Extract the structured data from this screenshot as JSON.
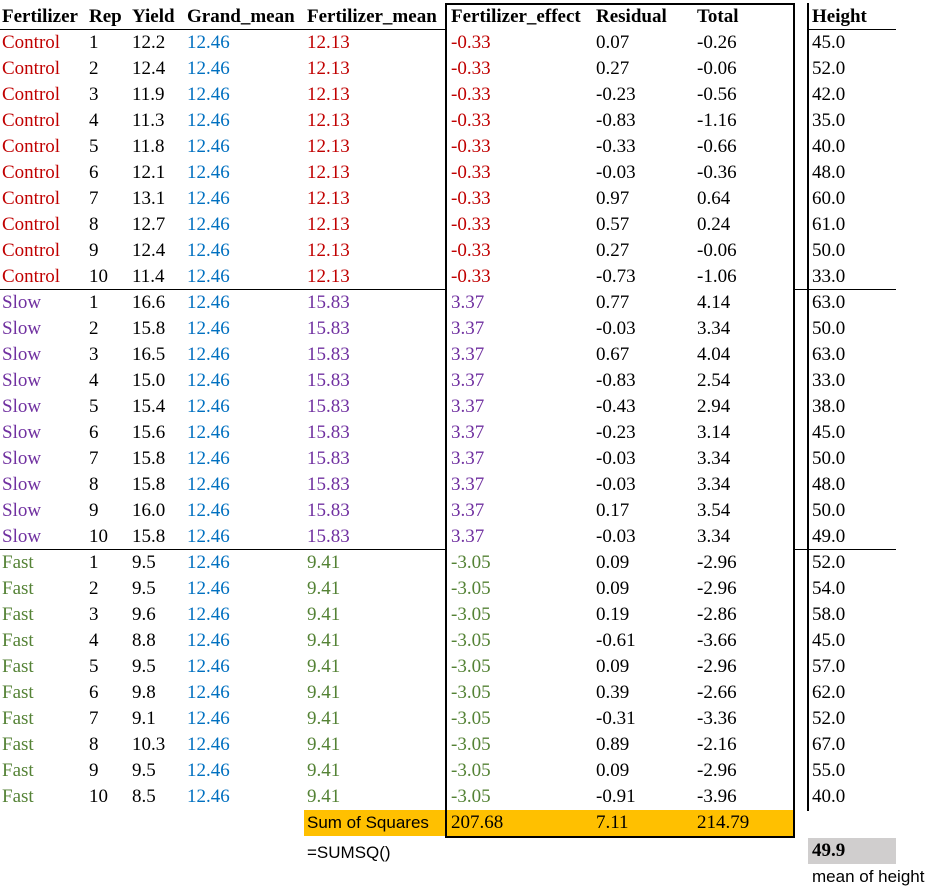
{
  "headers": {
    "fertilizer": "Fertilizer",
    "rep": "Rep",
    "yield": "Yield",
    "grand_mean": "Grand_mean",
    "fertilizer_mean": "Fertilizer_mean",
    "fertilizer_effect": "Fertilizer_effect",
    "residual": "Residual",
    "total": "Total",
    "height": "Height"
  },
  "colors": {
    "Control": "#c00000",
    "Slow": "#7030a0",
    "Fast": "#548235",
    "grand_mean": "#0070c0",
    "orange_fill": "#ffc000",
    "grey_fill": "#d0cece"
  },
  "rows": [
    {
      "fertilizer": "Control",
      "rep": "1",
      "yield": "12.2",
      "grand_mean": "12.46",
      "fertilizer_mean": "12.13",
      "fertilizer_effect": "-0.33",
      "residual": "0.07",
      "total": "-0.26",
      "height": "45.0"
    },
    {
      "fertilizer": "Control",
      "rep": "2",
      "yield": "12.4",
      "grand_mean": "12.46",
      "fertilizer_mean": "12.13",
      "fertilizer_effect": "-0.33",
      "residual": "0.27",
      "total": "-0.06",
      "height": "52.0"
    },
    {
      "fertilizer": "Control",
      "rep": "3",
      "yield": "11.9",
      "grand_mean": "12.46",
      "fertilizer_mean": "12.13",
      "fertilizer_effect": "-0.33",
      "residual": "-0.23",
      "total": "-0.56",
      "height": "42.0"
    },
    {
      "fertilizer": "Control",
      "rep": "4",
      "yield": "11.3",
      "grand_mean": "12.46",
      "fertilizer_mean": "12.13",
      "fertilizer_effect": "-0.33",
      "residual": "-0.83",
      "total": "-1.16",
      "height": "35.0"
    },
    {
      "fertilizer": "Control",
      "rep": "5",
      "yield": "11.8",
      "grand_mean": "12.46",
      "fertilizer_mean": "12.13",
      "fertilizer_effect": "-0.33",
      "residual": "-0.33",
      "total": "-0.66",
      "height": "40.0"
    },
    {
      "fertilizer": "Control",
      "rep": "6",
      "yield": "12.1",
      "grand_mean": "12.46",
      "fertilizer_mean": "12.13",
      "fertilizer_effect": "-0.33",
      "residual": "-0.03",
      "total": "-0.36",
      "height": "48.0"
    },
    {
      "fertilizer": "Control",
      "rep": "7",
      "yield": "13.1",
      "grand_mean": "12.46",
      "fertilizer_mean": "12.13",
      "fertilizer_effect": "-0.33",
      "residual": "0.97",
      "total": "0.64",
      "height": "60.0"
    },
    {
      "fertilizer": "Control",
      "rep": "8",
      "yield": "12.7",
      "grand_mean": "12.46",
      "fertilizer_mean": "12.13",
      "fertilizer_effect": "-0.33",
      "residual": "0.57",
      "total": "0.24",
      "height": "61.0"
    },
    {
      "fertilizer": "Control",
      "rep": "9",
      "yield": "12.4",
      "grand_mean": "12.46",
      "fertilizer_mean": "12.13",
      "fertilizer_effect": "-0.33",
      "residual": "0.27",
      "total": "-0.06",
      "height": "50.0"
    },
    {
      "fertilizer": "Control",
      "rep": "10",
      "yield": "11.4",
      "grand_mean": "12.46",
      "fertilizer_mean": "12.13",
      "fertilizer_effect": "-0.33",
      "residual": "-0.73",
      "total": "-1.06",
      "height": "33.0"
    },
    {
      "fertilizer": "Slow",
      "rep": "1",
      "yield": "16.6",
      "grand_mean": "12.46",
      "fertilizer_mean": "15.83",
      "fertilizer_effect": "3.37",
      "residual": "0.77",
      "total": "4.14",
      "height": "63.0"
    },
    {
      "fertilizer": "Slow",
      "rep": "2",
      "yield": "15.8",
      "grand_mean": "12.46",
      "fertilizer_mean": "15.83",
      "fertilizer_effect": "3.37",
      "residual": "-0.03",
      "total": "3.34",
      "height": "50.0"
    },
    {
      "fertilizer": "Slow",
      "rep": "3",
      "yield": "16.5",
      "grand_mean": "12.46",
      "fertilizer_mean": "15.83",
      "fertilizer_effect": "3.37",
      "residual": "0.67",
      "total": "4.04",
      "height": "63.0"
    },
    {
      "fertilizer": "Slow",
      "rep": "4",
      "yield": "15.0",
      "grand_mean": "12.46",
      "fertilizer_mean": "15.83",
      "fertilizer_effect": "3.37",
      "residual": "-0.83",
      "total": "2.54",
      "height": "33.0"
    },
    {
      "fertilizer": "Slow",
      "rep": "5",
      "yield": "15.4",
      "grand_mean": "12.46",
      "fertilizer_mean": "15.83",
      "fertilizer_effect": "3.37",
      "residual": "-0.43",
      "total": "2.94",
      "height": "38.0"
    },
    {
      "fertilizer": "Slow",
      "rep": "6",
      "yield": "15.6",
      "grand_mean": "12.46",
      "fertilizer_mean": "15.83",
      "fertilizer_effect": "3.37",
      "residual": "-0.23",
      "total": "3.14",
      "height": "45.0"
    },
    {
      "fertilizer": "Slow",
      "rep": "7",
      "yield": "15.8",
      "grand_mean": "12.46",
      "fertilizer_mean": "15.83",
      "fertilizer_effect": "3.37",
      "residual": "-0.03",
      "total": "3.34",
      "height": "50.0"
    },
    {
      "fertilizer": "Slow",
      "rep": "8",
      "yield": "15.8",
      "grand_mean": "12.46",
      "fertilizer_mean": "15.83",
      "fertilizer_effect": "3.37",
      "residual": "-0.03",
      "total": "3.34",
      "height": "48.0"
    },
    {
      "fertilizer": "Slow",
      "rep": "9",
      "yield": "16.0",
      "grand_mean": "12.46",
      "fertilizer_mean": "15.83",
      "fertilizer_effect": "3.37",
      "residual": "0.17",
      "total": "3.54",
      "height": "50.0"
    },
    {
      "fertilizer": "Slow",
      "rep": "10",
      "yield": "15.8",
      "grand_mean": "12.46",
      "fertilizer_mean": "15.83",
      "fertilizer_effect": "3.37",
      "residual": "-0.03",
      "total": "3.34",
      "height": "49.0"
    },
    {
      "fertilizer": "Fast",
      "rep": "1",
      "yield": "9.5",
      "grand_mean": "12.46",
      "fertilizer_mean": "9.41",
      "fertilizer_effect": "-3.05",
      "residual": "0.09",
      "total": "-2.96",
      "height": "52.0"
    },
    {
      "fertilizer": "Fast",
      "rep": "2",
      "yield": "9.5",
      "grand_mean": "12.46",
      "fertilizer_mean": "9.41",
      "fertilizer_effect": "-3.05",
      "residual": "0.09",
      "total": "-2.96",
      "height": "54.0"
    },
    {
      "fertilizer": "Fast",
      "rep": "3",
      "yield": "9.6",
      "grand_mean": "12.46",
      "fertilizer_mean": "9.41",
      "fertilizer_effect": "-3.05",
      "residual": "0.19",
      "total": "-2.86",
      "height": "58.0"
    },
    {
      "fertilizer": "Fast",
      "rep": "4",
      "yield": "8.8",
      "grand_mean": "12.46",
      "fertilizer_mean": "9.41",
      "fertilizer_effect": "-3.05",
      "residual": "-0.61",
      "total": "-3.66",
      "height": "45.0"
    },
    {
      "fertilizer": "Fast",
      "rep": "5",
      "yield": "9.5",
      "grand_mean": "12.46",
      "fertilizer_mean": "9.41",
      "fertilizer_effect": "-3.05",
      "residual": "0.09",
      "total": "-2.96",
      "height": "57.0"
    },
    {
      "fertilizer": "Fast",
      "rep": "6",
      "yield": "9.8",
      "grand_mean": "12.46",
      "fertilizer_mean": "9.41",
      "fertilizer_effect": "-3.05",
      "residual": "0.39",
      "total": "-2.66",
      "height": "62.0"
    },
    {
      "fertilizer": "Fast",
      "rep": "7",
      "yield": "9.1",
      "grand_mean": "12.46",
      "fertilizer_mean": "9.41",
      "fertilizer_effect": "-3.05",
      "residual": "-0.31",
      "total": "-3.36",
      "height": "52.0"
    },
    {
      "fertilizer": "Fast",
      "rep": "8",
      "yield": "10.3",
      "grand_mean": "12.46",
      "fertilizer_mean": "9.41",
      "fertilizer_effect": "-3.05",
      "residual": "0.89",
      "total": "-2.16",
      "height": "67.0"
    },
    {
      "fertilizer": "Fast",
      "rep": "9",
      "yield": "9.5",
      "grand_mean": "12.46",
      "fertilizer_mean": "9.41",
      "fertilizer_effect": "-3.05",
      "residual": "0.09",
      "total": "-2.96",
      "height": "55.0"
    },
    {
      "fertilizer": "Fast",
      "rep": "10",
      "yield": "8.5",
      "grand_mean": "12.46",
      "fertilizer_mean": "9.41",
      "fertilizer_effect": "-3.05",
      "residual": "-0.91",
      "total": "-3.96",
      "height": "40.0"
    }
  ],
  "summary": {
    "label": "Sum of Squares",
    "fertilizer_effect": "207.68",
    "residual": "7.11",
    "total": "214.79",
    "formula": "=SUMSQ()",
    "mean_height": "49.9",
    "mean_height_label": "mean of height"
  }
}
